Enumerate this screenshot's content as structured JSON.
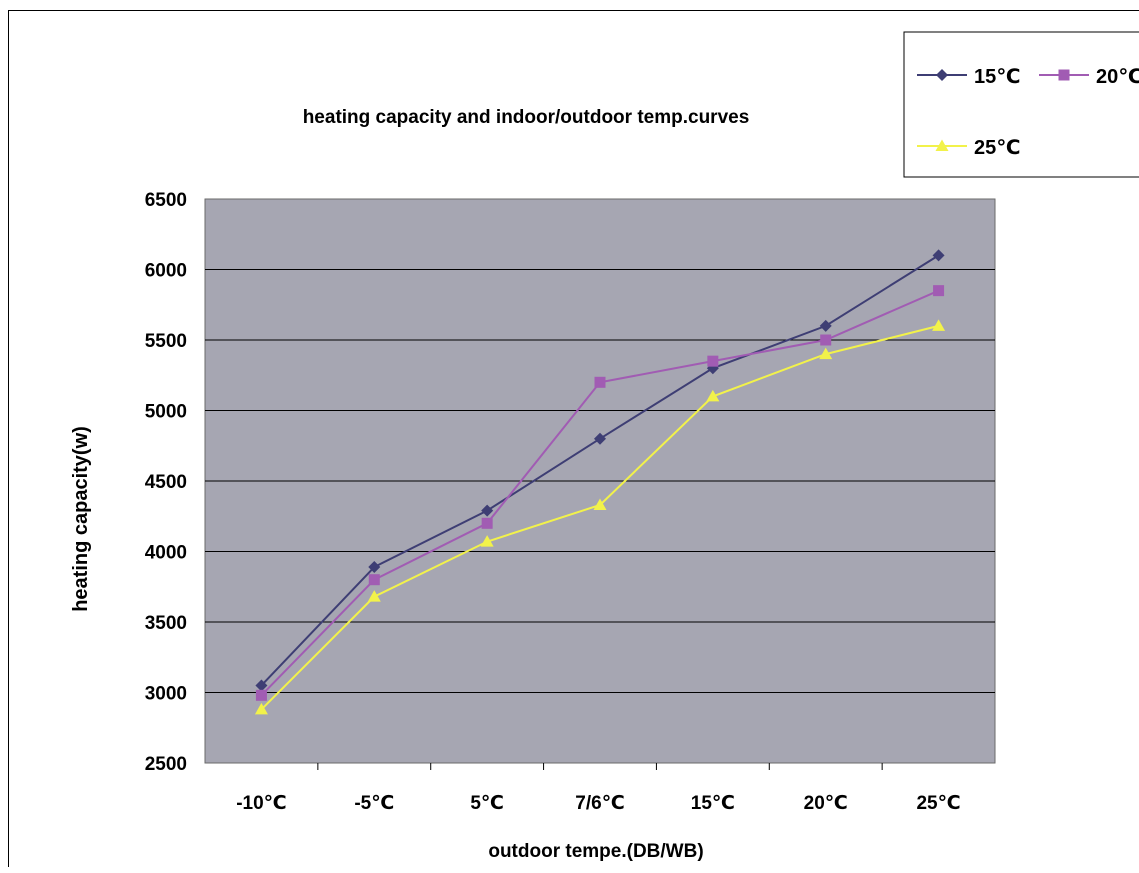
{
  "chart_data": {
    "type": "line",
    "title": "heating capacity and indoor/outdoor temp.curves",
    "xlabel": "outdoor tempe.(DB/WB)",
    "ylabel": "heating capacity(w)",
    "categories": [
      "-10℃",
      "-5℃",
      "5℃",
      "7/6℃",
      "15℃",
      "20℃",
      "25℃"
    ],
    "ylim": [
      2500,
      6500
    ],
    "yticks": [
      2500,
      3000,
      3500,
      4000,
      4500,
      5000,
      5500,
      6000,
      6500
    ],
    "grid": true,
    "plot_background": "#A6A6B2",
    "legend_position": "top-right",
    "series": [
      {
        "name": "15℃",
        "color": "#3E3E74",
        "marker": "diamond",
        "values": [
          3050,
          3890,
          4290,
          4800,
          5300,
          5600,
          6100
        ]
      },
      {
        "name": "20℃",
        "color": "#A15CB3",
        "marker": "square",
        "values": [
          2980,
          3800,
          4200,
          5200,
          5350,
          5500,
          5850
        ]
      },
      {
        "name": "25℃",
        "color": "#F2F24A",
        "marker": "triangle",
        "values": [
          2880,
          3680,
          4070,
          4330,
          5100,
          5400,
          5600
        ]
      }
    ]
  }
}
